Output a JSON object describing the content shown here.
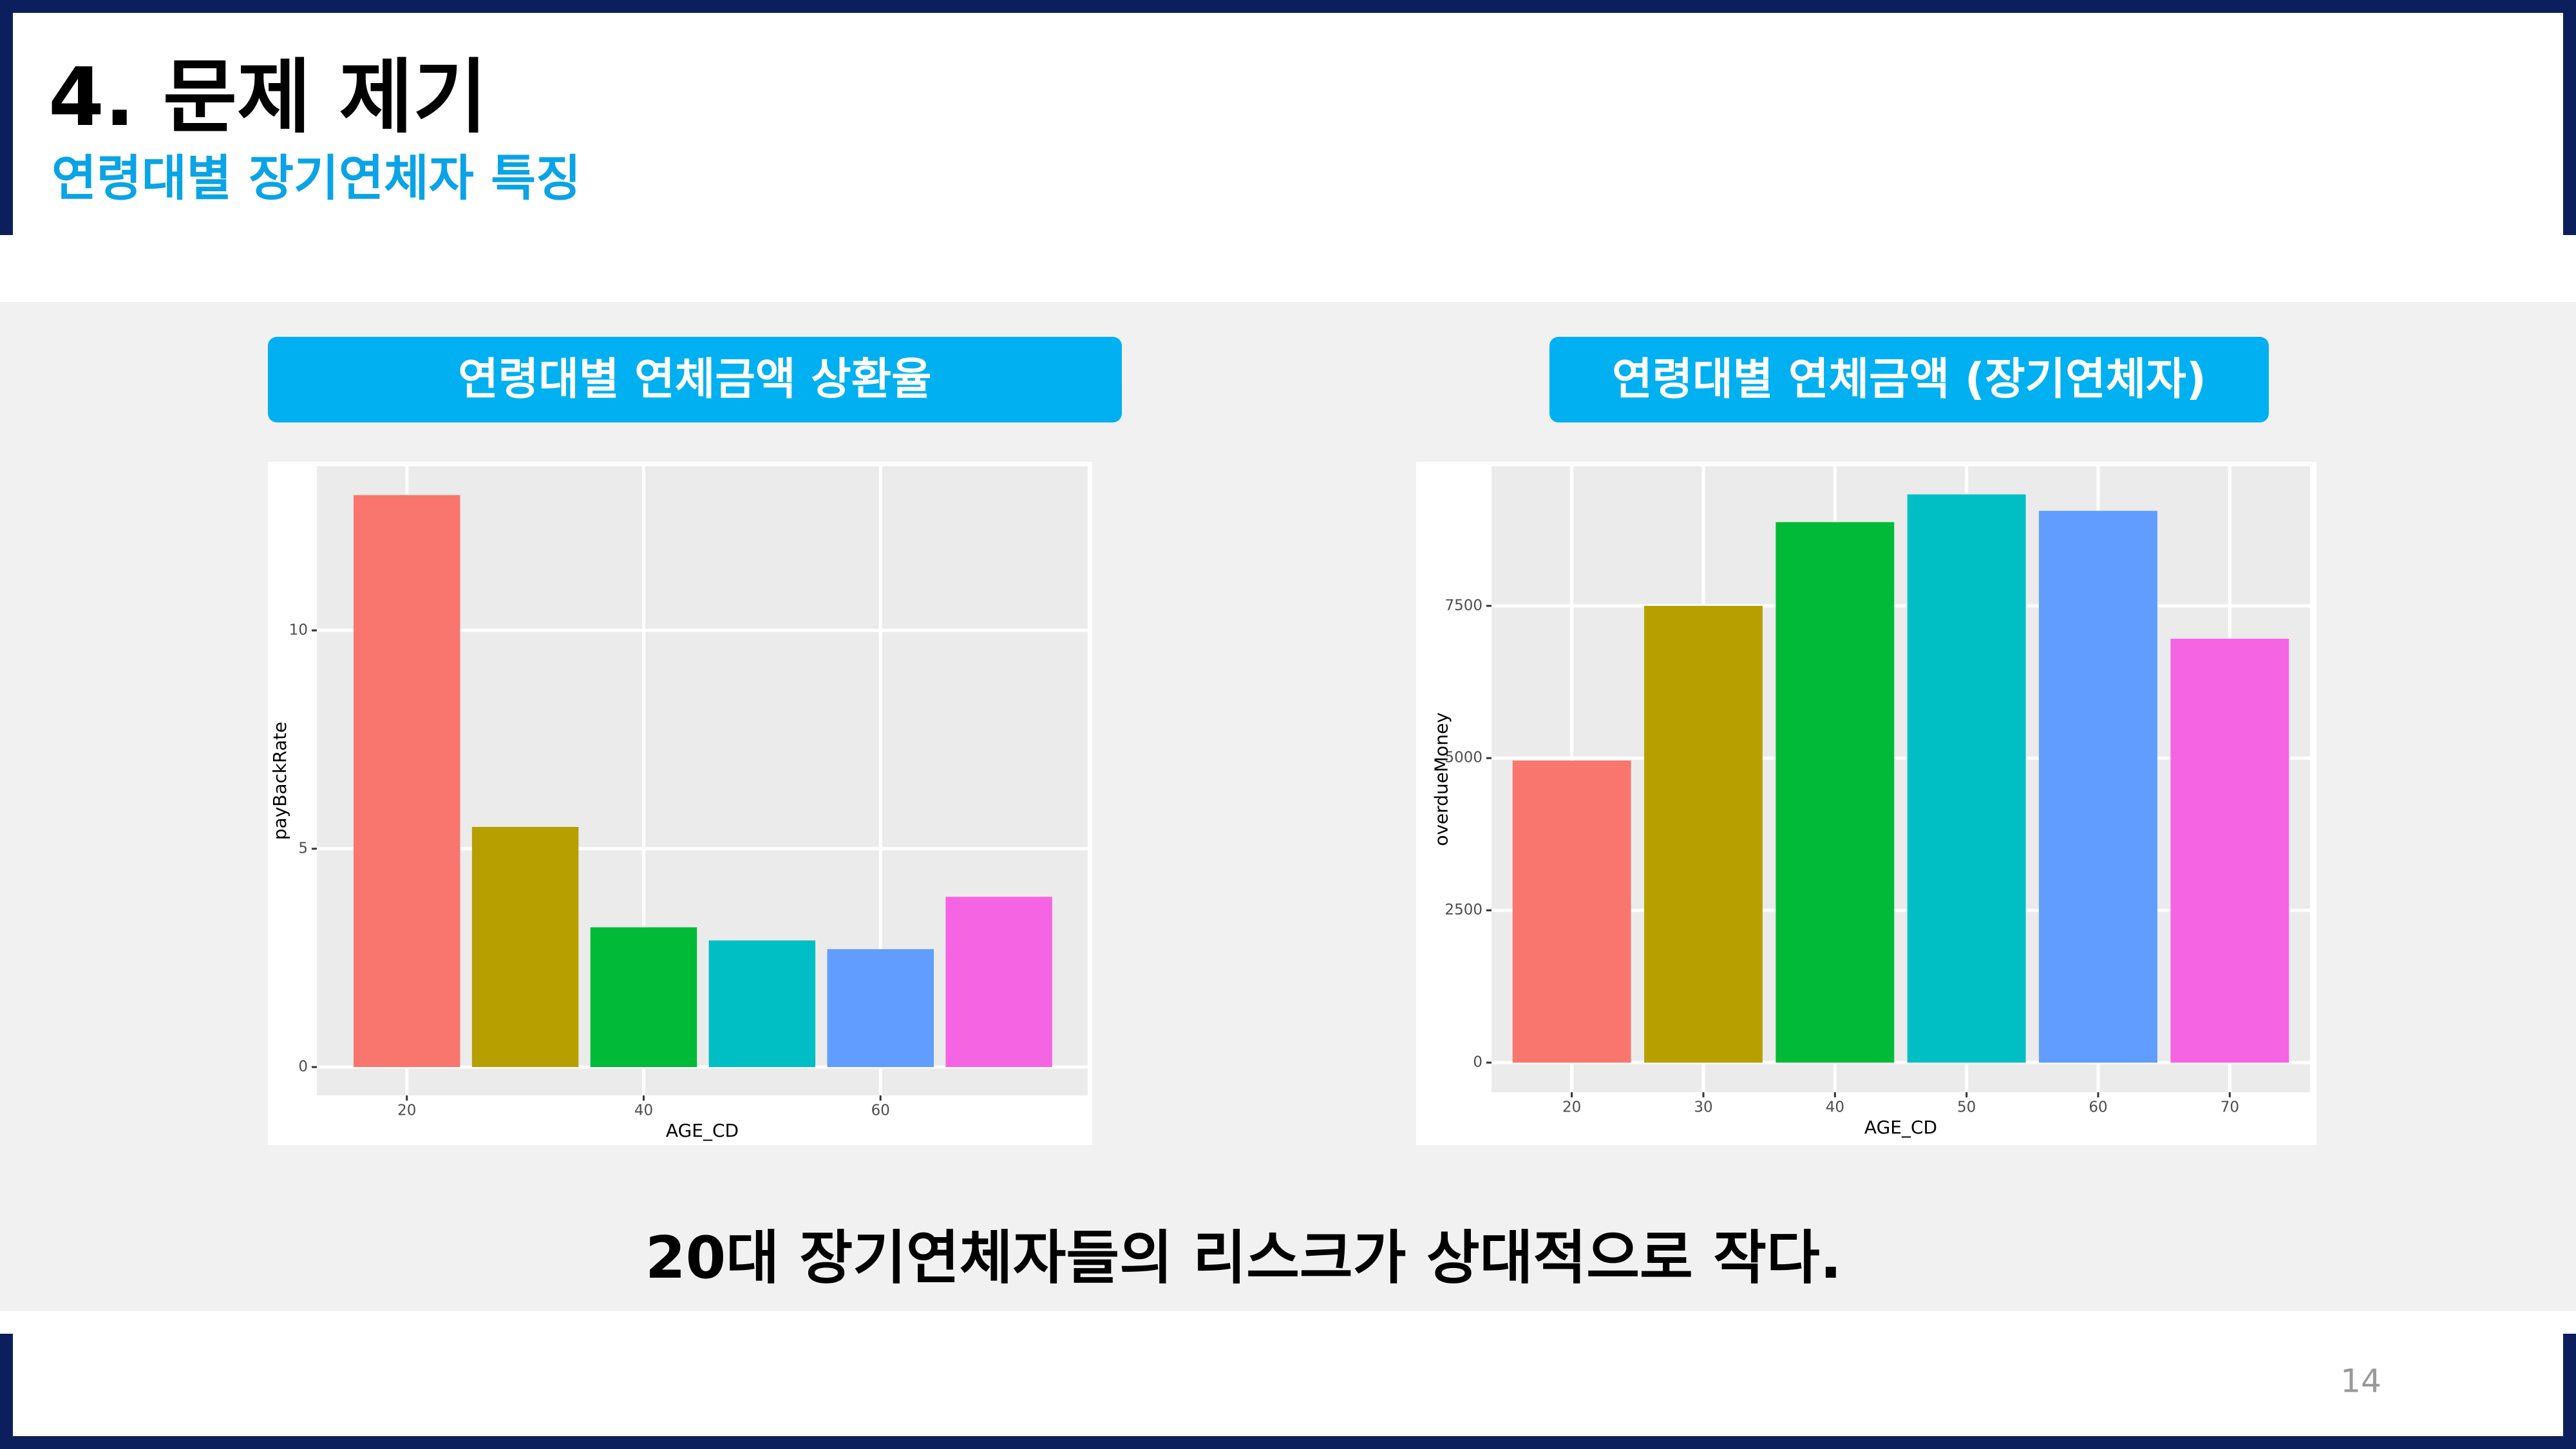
{
  "header": {
    "title": "4. 문제 제기",
    "subtitle": "연령대별 장기연체자 특징"
  },
  "chart_data": [
    {
      "type": "bar",
      "title": "연령대별 연체금액 상환율",
      "x": [
        20,
        30,
        40,
        50,
        60,
        70
      ],
      "values": [
        13.1,
        5.5,
        3.2,
        2.9,
        2.7,
        3.9
      ],
      "colors": [
        "#F8766D",
        "#B79F00",
        "#00BA38",
        "#00BFC4",
        "#619CFF",
        "#F564E3"
      ],
      "x_label": "AGE_CD",
      "y_label": "payBackRate",
      "xlim": [
        12.4,
        77.5
      ],
      "ylim": [
        -0.65,
        13.76
      ],
      "xticks": [
        20,
        40,
        60
      ],
      "yticks": [
        0,
        5,
        10
      ],
      "grid": true
    },
    {
      "type": "bar",
      "title": "연령대별 연체금액 (장기연체자)",
      "x": [
        20,
        30,
        40,
        50,
        60,
        70
      ],
      "values": [
        4960,
        7500,
        8875,
        9330,
        9060,
        6960
      ],
      "colors": [
        "#F8766D",
        "#B79F00",
        "#00BA38",
        "#00BFC4",
        "#619CFF",
        "#F564E3"
      ],
      "x_label": "AGE_CD",
      "y_label": "overdueMoney",
      "xlim": [
        13.9,
        76.1
      ],
      "ylim": [
        -486,
        9792
      ],
      "xticks": [
        20,
        30,
        40,
        50,
        60,
        70
      ],
      "yticks": [
        0,
        2500,
        5000,
        7500
      ],
      "grid": true
    }
  ],
  "conclusion": "20대 장기연체자들의 리스크가 상대적으로 작다.",
  "page_number": "14"
}
